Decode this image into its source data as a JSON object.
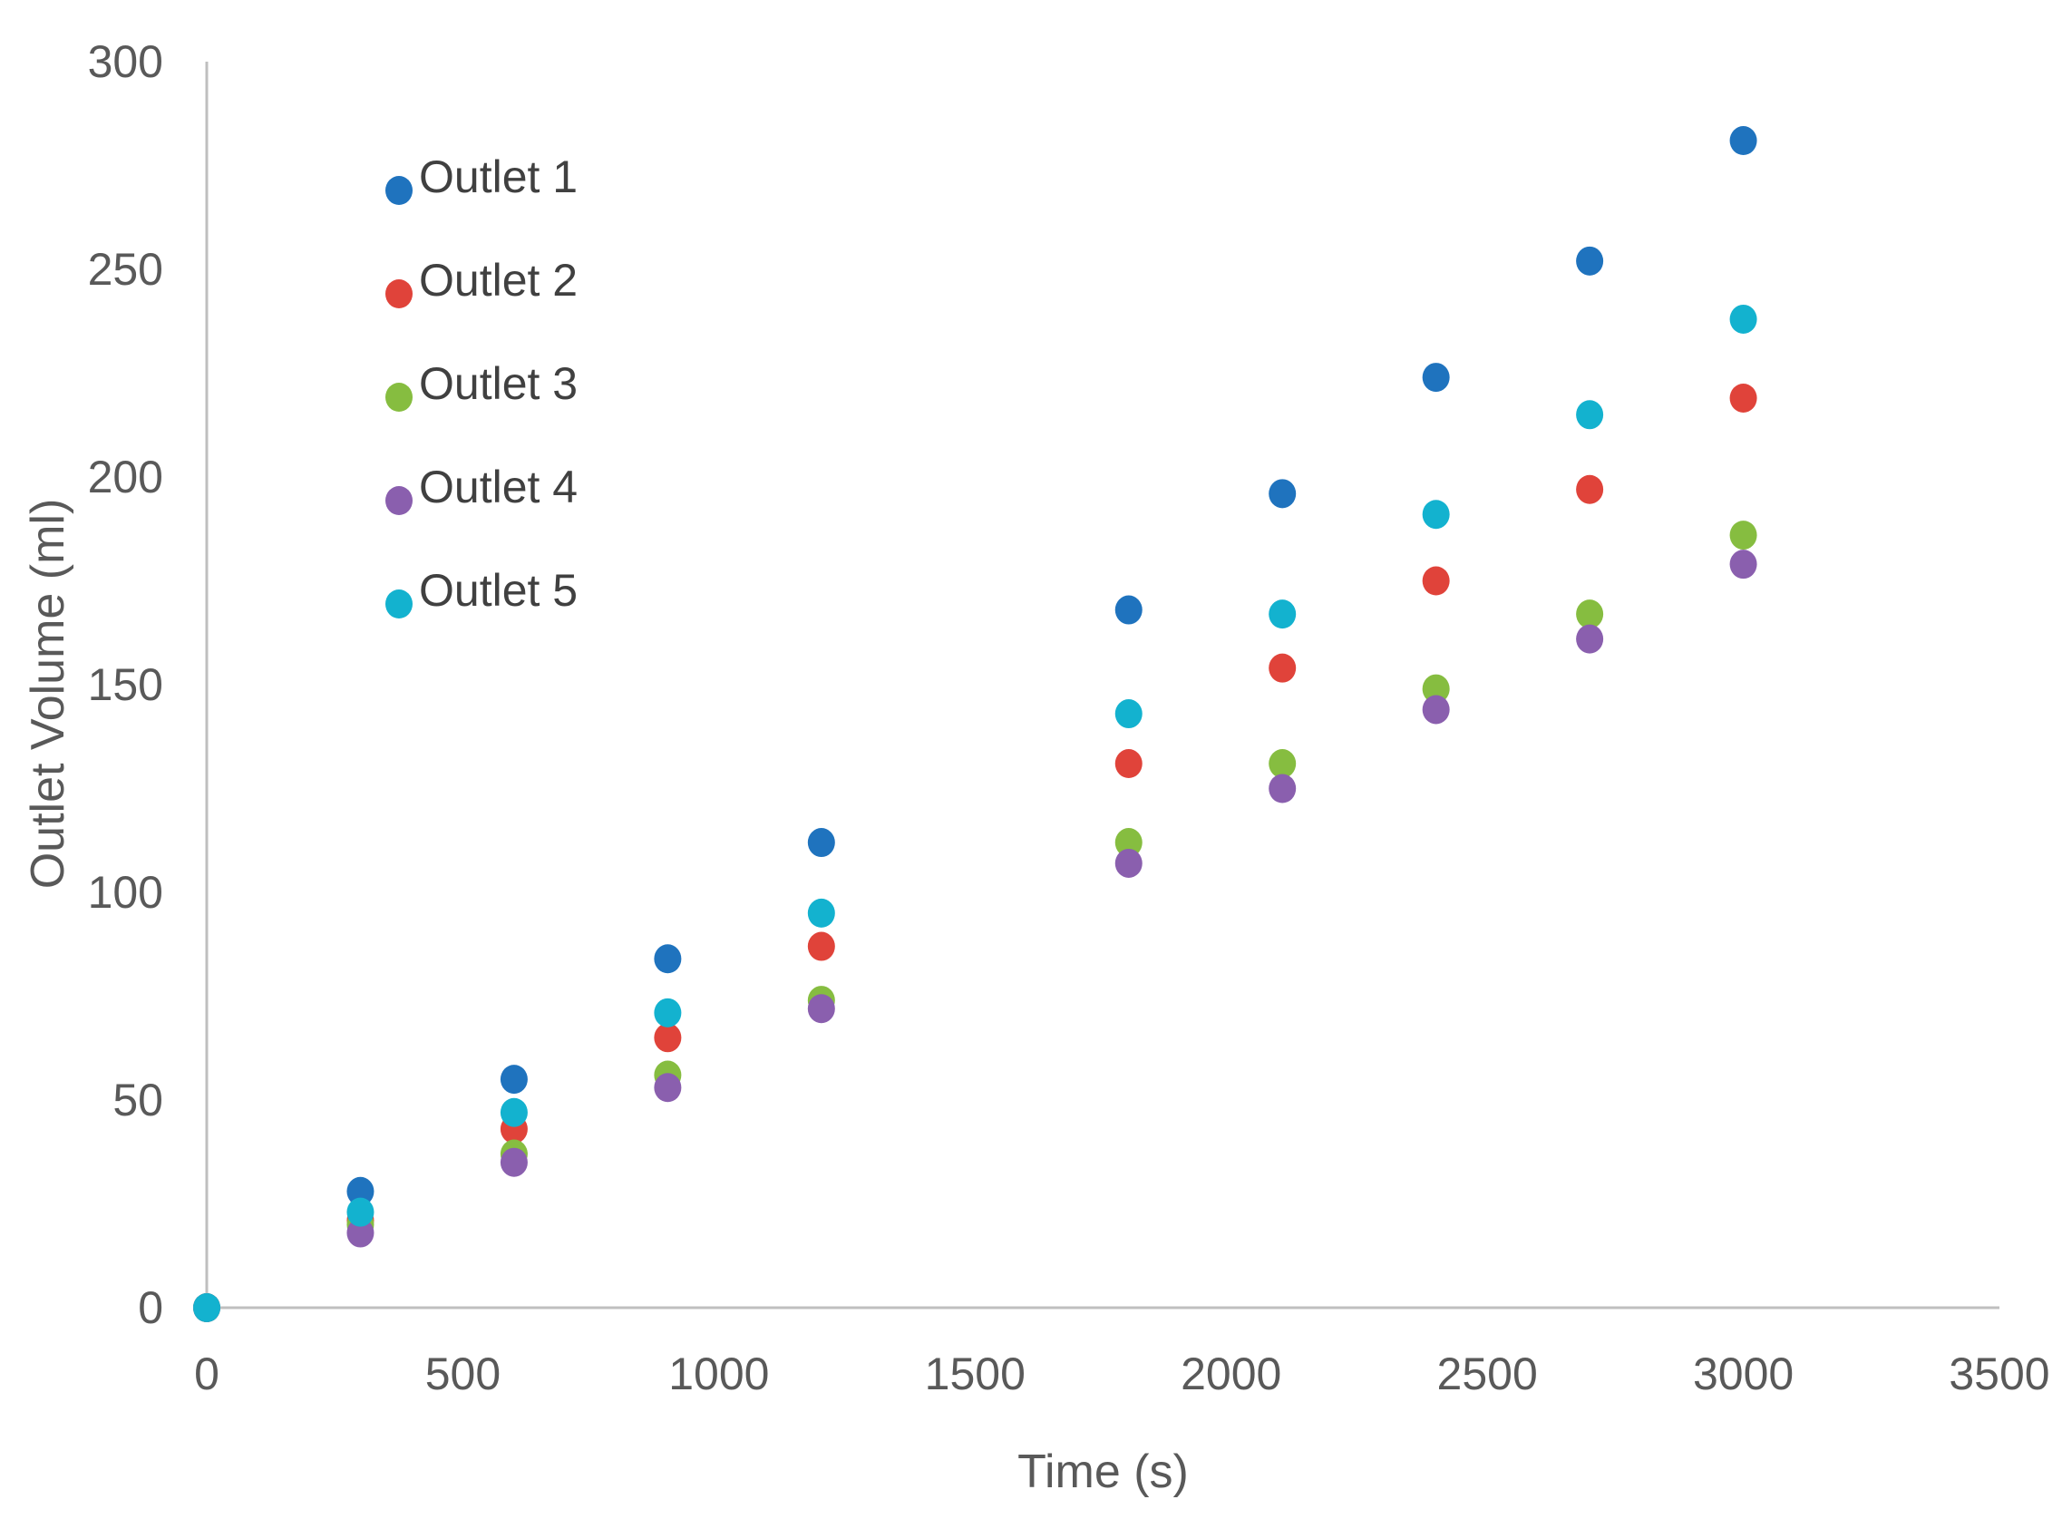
{
  "chart_data": {
    "type": "scatter",
    "title": "",
    "xlabel": "Time (s)",
    "ylabel": "Outlet Volume (ml)",
    "xlim": [
      0,
      3500
    ],
    "ylim": [
      0,
      300
    ],
    "x_ticks": [
      0,
      500,
      1000,
      1500,
      2000,
      2500,
      3000,
      3500
    ],
    "y_ticks": [
      0,
      50,
      100,
      150,
      200,
      250,
      300
    ],
    "grid": false,
    "legend_position": "top-left",
    "x": [
      0,
      300,
      600,
      900,
      1200,
      1800,
      2100,
      2400,
      2700,
      3000
    ],
    "series": [
      {
        "name": "Outlet 1",
        "color": "#1f73be",
        "values": [
          0,
          28,
          55,
          84,
          112,
          168,
          196,
          224,
          252,
          281
        ]
      },
      {
        "name": "Outlet 2",
        "color": "#e0433a",
        "values": [
          0,
          21,
          43,
          65,
          87,
          131,
          154,
          175,
          197,
          219
        ]
      },
      {
        "name": "Outlet 3",
        "color": "#86bd40",
        "values": [
          0,
          20,
          37,
          56,
          74,
          112,
          131,
          149,
          167,
          186
        ]
      },
      {
        "name": "Outlet 4",
        "color": "#8a5fae",
        "values": [
          0,
          18,
          35,
          53,
          72,
          107,
          125,
          144,
          161,
          179
        ]
      },
      {
        "name": "Outlet 5",
        "color": "#13b2cf",
        "values": [
          0,
          23,
          47,
          71,
          95,
          143,
          167,
          191,
          215,
          238
        ]
      }
    ]
  }
}
